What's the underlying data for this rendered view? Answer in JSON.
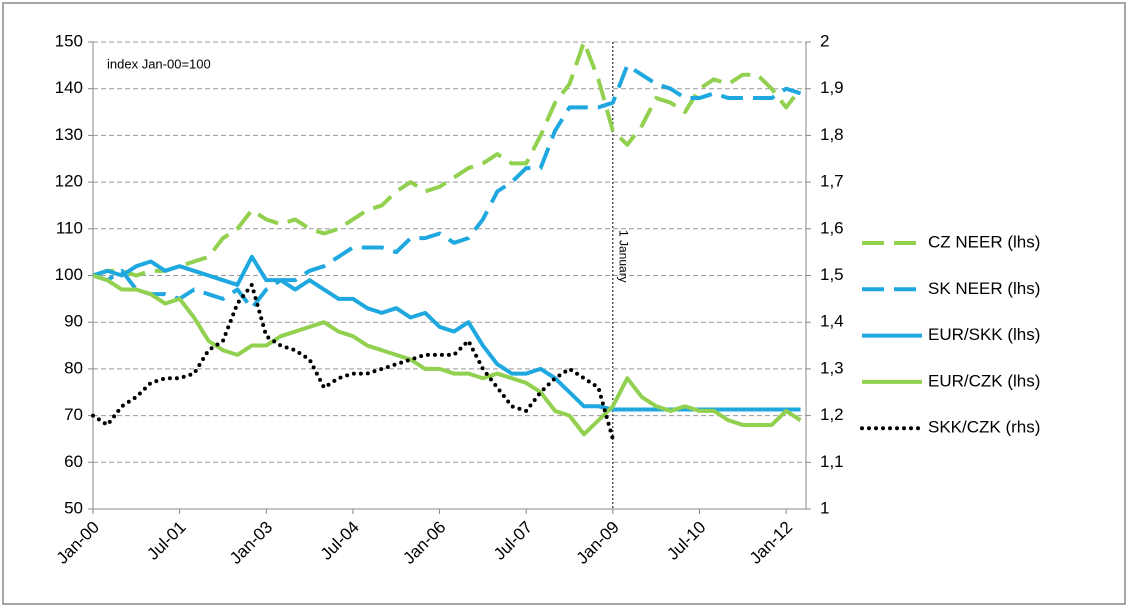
{
  "chart_data": {
    "type": "line",
    "annotation": "index Jan-00=100",
    "event_line": {
      "category": "Jan-09",
      "label": "1 January"
    },
    "categories": [
      "Jan-00",
      null,
      null,
      null,
      null,
      null,
      "Jul-01",
      null,
      null,
      null,
      null,
      null,
      "Jan-03",
      null,
      null,
      null,
      null,
      null,
      "Jul-04",
      null,
      null,
      null,
      null,
      null,
      "Jan-06",
      null,
      null,
      null,
      null,
      null,
      "Jul-07",
      null,
      null,
      null,
      null,
      null,
      "Jan-09",
      null,
      null,
      null,
      null,
      null,
      "Jul-10",
      null,
      null,
      null,
      null,
      null,
      "Jan-12",
      null
    ],
    "series": [
      {
        "name": "CZ NEER (lhs)",
        "color": "#92d050",
        "linestyle": "dashed",
        "axis": "y",
        "values": [
          100,
          101,
          101,
          100,
          101,
          101,
          102,
          103,
          104,
          108,
          110,
          114,
          112,
          111,
          112,
          110,
          109,
          110,
          112,
          114,
          115,
          118,
          120,
          118,
          119,
          121,
          123,
          124,
          126,
          124,
          124,
          130,
          137,
          141,
          150,
          142,
          131,
          128,
          132,
          138,
          137,
          135,
          140,
          142,
          141,
          143,
          143,
          140,
          136,
          140
        ]
      },
      {
        "name": "SK NEER (lhs)",
        "color": "#1fa8e0",
        "linestyle": "dashed",
        "axis": "y",
        "values": [
          100,
          99,
          101,
          97,
          96,
          96,
          95,
          97,
          96,
          95,
          97,
          93,
          97,
          99,
          99,
          101,
          102,
          104,
          106,
          106,
          106,
          105,
          108,
          108,
          109,
          107,
          108,
          112,
          118,
          120,
          123,
          123,
          131,
          136,
          136,
          136,
          137,
          145,
          143,
          141,
          140,
          138,
          138,
          139,
          138,
          138,
          138,
          138,
          140,
          139
        ]
      },
      {
        "name": "EUR/SKK (lhs)",
        "color": "#1fa8e0",
        "linestyle": "solid",
        "axis": "y",
        "values": [
          100,
          101,
          100,
          102,
          103,
          101,
          102,
          101,
          100,
          99,
          98,
          104,
          99,
          99,
          97,
          99,
          97,
          95,
          95,
          93,
          92,
          93,
          91,
          92,
          89,
          88,
          90,
          85,
          81,
          79,
          79,
          80,
          78,
          75,
          72,
          72,
          71.3,
          71.3,
          71.3,
          71.3,
          71.3,
          71.3,
          71.3,
          71.3,
          71.3,
          71.3,
          71.3,
          71.3,
          71.3,
          71.3
        ]
      },
      {
        "name": "EUR/CZK (lhs)",
        "color": "#92d050",
        "linestyle": "solid",
        "axis": "y",
        "values": [
          100,
          99,
          97,
          97,
          96,
          94,
          95,
          91,
          86,
          84,
          83,
          85,
          85,
          87,
          88,
          89,
          90,
          88,
          87,
          85,
          84,
          83,
          82,
          80,
          80,
          79,
          79,
          78,
          79,
          78,
          77,
          75,
          71,
          70,
          66,
          69,
          72,
          78,
          74,
          72,
          71,
          72,
          71,
          71,
          69,
          68,
          68,
          68,
          71,
          69
        ]
      },
      {
        "name": "SKK/CZK (rhs)",
        "color": "#000000",
        "linestyle": "dotted",
        "axis": "y2",
        "values": [
          1.2,
          1.18,
          1.22,
          1.24,
          1.27,
          1.28,
          1.28,
          1.29,
          1.34,
          1.36,
          1.44,
          1.48,
          1.37,
          1.35,
          1.34,
          1.32,
          1.26,
          1.28,
          1.29,
          1.29,
          1.3,
          1.31,
          1.32,
          1.33,
          1.33,
          1.33,
          1.36,
          1.3,
          1.26,
          1.22,
          1.21,
          1.25,
          1.28,
          1.3,
          1.28,
          1.26,
          1.15,
          null,
          null,
          null,
          null,
          null,
          null,
          null,
          null,
          null,
          null,
          null,
          null,
          null
        ]
      }
    ],
    "ylim": [
      50,
      150
    ],
    "yticks": [
      50,
      60,
      70,
      80,
      90,
      100,
      110,
      120,
      130,
      140,
      150
    ],
    "y2lim": [
      1,
      2
    ],
    "y2ticks": [
      1,
      {
        "value": 1.1,
        "label": "1,1"
      },
      {
        "value": 1.2,
        "label": "1,2"
      },
      {
        "value": 1.3,
        "label": "1,3"
      },
      {
        "value": 1.4,
        "label": "1,4"
      },
      {
        "value": 1.5,
        "label": "1,5"
      },
      {
        "value": 1.6,
        "label": "1,6"
      },
      {
        "value": 1.7,
        "label": "1,7"
      },
      {
        "value": 1.8,
        "label": "1,8"
      },
      {
        "value": 1.9,
        "label": "1,9"
      },
      2
    ],
    "grid": true,
    "legend": "right"
  }
}
